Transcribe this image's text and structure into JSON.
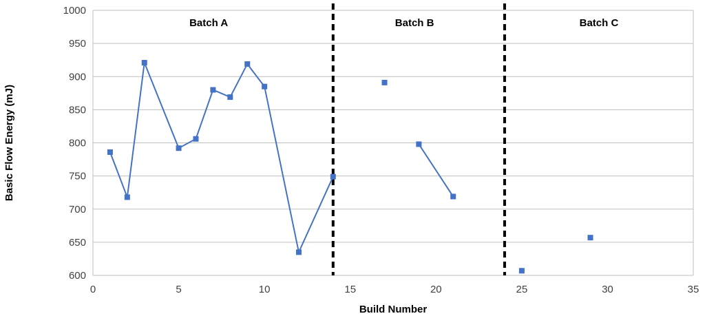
{
  "chart_data": {
    "type": "scatter",
    "xlabel": "Build Number",
    "ylabel": "Basic Flow Energy (mJ)",
    "xlim": [
      0,
      35
    ],
    "ylim": [
      600,
      1000
    ],
    "x_ticks": [
      0,
      5,
      10,
      15,
      20,
      25,
      30,
      35
    ],
    "y_ticks": [
      600,
      650,
      700,
      750,
      800,
      850,
      900,
      950,
      1000
    ],
    "grid": "horizontal",
    "marker": "square",
    "color": "#4472c4",
    "dividers": [
      14,
      24
    ],
    "divider_color": "#000000",
    "regions": [
      {
        "label": "Batch A",
        "x_center": 6.75
      },
      {
        "label": "Batch B",
        "x_center": 18.75
      },
      {
        "label": "Batch C",
        "x_center": 29.5
      }
    ],
    "series": [
      {
        "x": [
          1,
          2,
          3,
          5,
          6,
          7,
          8,
          9,
          10,
          12,
          14
        ],
        "y": [
          786,
          718,
          921,
          792,
          806,
          880,
          869,
          919,
          885,
          635,
          749
        ],
        "connected": true
      },
      {
        "x": [
          17
        ],
        "y": [
          891
        ],
        "connected": false
      },
      {
        "x": [
          19,
          21
        ],
        "y": [
          798,
          719
        ],
        "connected": true
      },
      {
        "x": [
          25
        ],
        "y": [
          607
        ],
        "connected": false
      },
      {
        "x": [
          29
        ],
        "y": [
          657
        ],
        "connected": false
      }
    ]
  }
}
